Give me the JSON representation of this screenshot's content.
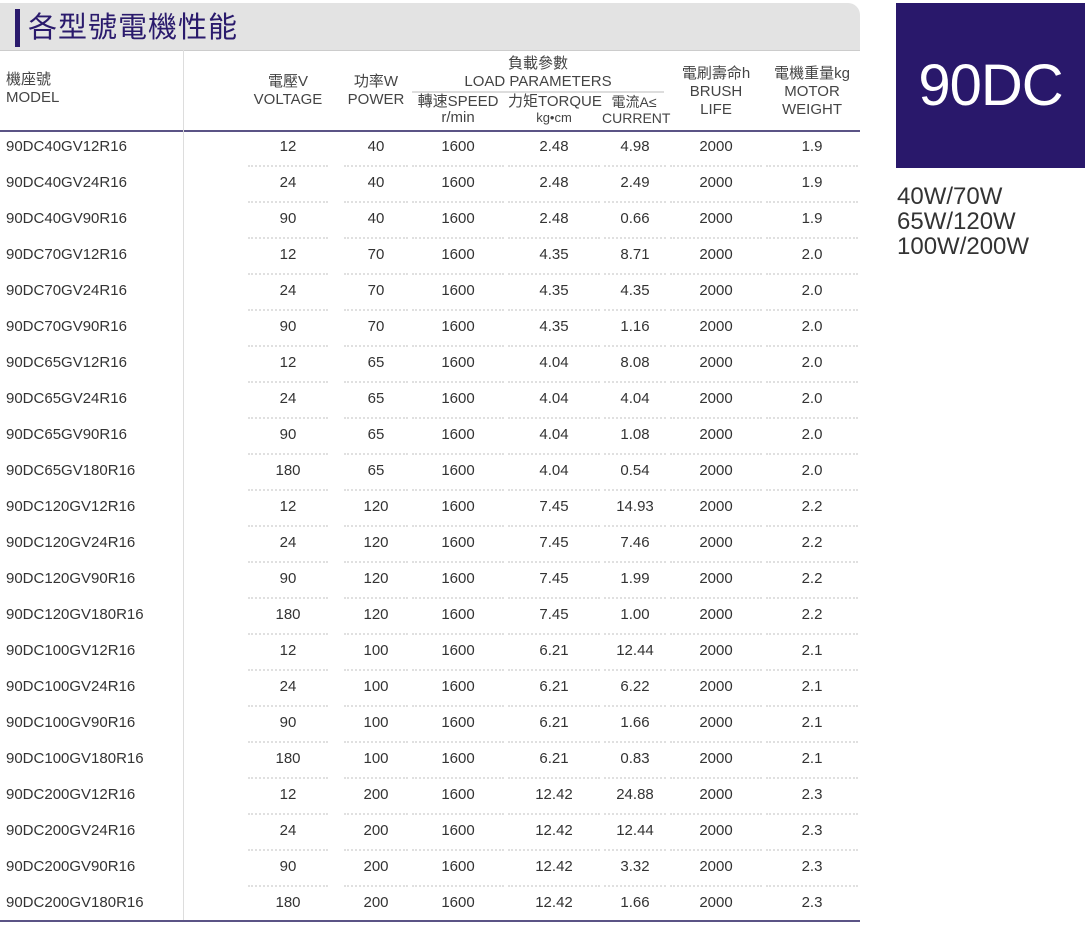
{
  "title": "各型號電機性能",
  "header": {
    "model_zh": "機座號",
    "model_en": "MODEL",
    "voltage_zh": "電壓V",
    "voltage_en": "VOLTAGE",
    "power_zh": "功率W",
    "power_en": "POWER",
    "load_zh": "負載參數",
    "load_en": "LOAD PARAMETERS",
    "speed": "轉速SPEED",
    "speed_unit": "r/min",
    "torque": "力矩TORQUE",
    "torque_unit": "kg•cm",
    "current": "電流A≤",
    "current_en": "CURRENT",
    "life_zh": "電刷壽命h",
    "life_en1": "BRUSH",
    "life_en2": "LIFE",
    "weight_zh": "電機重量kg",
    "weight_en1": "MOTOR",
    "weight_en2": "WEIGHT"
  },
  "rows": [
    [
      "90DC40GV12R16",
      "12",
      "40",
      "1600",
      "2.48",
      "4.98",
      "2000",
      "1.9"
    ],
    [
      "90DC40GV24R16",
      "24",
      "40",
      "1600",
      "2.48",
      "2.49",
      "2000",
      "1.9"
    ],
    [
      "90DC40GV90R16",
      "90",
      "40",
      "1600",
      "2.48",
      "0.66",
      "2000",
      "1.9"
    ],
    [
      "90DC70GV12R16",
      "12",
      "70",
      "1600",
      "4.35",
      "8.71",
      "2000",
      "2.0"
    ],
    [
      "90DC70GV24R16",
      "24",
      "70",
      "1600",
      "4.35",
      "4.35",
      "2000",
      "2.0"
    ],
    [
      "90DC70GV90R16",
      "90",
      "70",
      "1600",
      "4.35",
      "1.16",
      "2000",
      "2.0"
    ],
    [
      "90DC65GV12R16",
      "12",
      "65",
      "1600",
      "4.04",
      "8.08",
      "2000",
      "2.0"
    ],
    [
      "90DC65GV24R16",
      "24",
      "65",
      "1600",
      "4.04",
      "4.04",
      "2000",
      "2.0"
    ],
    [
      "90DC65GV90R16",
      "90",
      "65",
      "1600",
      "4.04",
      "1.08",
      "2000",
      "2.0"
    ],
    [
      "90DC65GV180R16",
      "180",
      "65",
      "1600",
      "4.04",
      "0.54",
      "2000",
      "2.0"
    ],
    [
      "90DC120GV12R16",
      "12",
      "120",
      "1600",
      "7.45",
      "14.93",
      "2000",
      "2.2"
    ],
    [
      "90DC120GV24R16",
      "24",
      "120",
      "1600",
      "7.45",
      "7.46",
      "2000",
      "2.2"
    ],
    [
      "90DC120GV90R16",
      "90",
      "120",
      "1600",
      "7.45",
      "1.99",
      "2000",
      "2.2"
    ],
    [
      "90DC120GV180R16",
      "180",
      "120",
      "1600",
      "7.45",
      "1.00",
      "2000",
      "2.2"
    ],
    [
      "90DC100GV12R16",
      "12",
      "100",
      "1600",
      "6.21",
      "12.44",
      "2000",
      "2.1"
    ],
    [
      "90DC100GV24R16",
      "24",
      "100",
      "1600",
      "6.21",
      "6.22",
      "2000",
      "2.1"
    ],
    [
      "90DC100GV90R16",
      "90",
      "100",
      "1600",
      "6.21",
      "1.66",
      "2000",
      "2.1"
    ],
    [
      "90DC100GV180R16",
      "180",
      "100",
      "1600",
      "6.21",
      "0.83",
      "2000",
      "2.1"
    ],
    [
      "90DC200GV12R16",
      "12",
      "200",
      "1600",
      "12.42",
      "24.88",
      "2000",
      "2.3"
    ],
    [
      "90DC200GV24R16",
      "24",
      "200",
      "1600",
      "12.42",
      "12.44",
      "2000",
      "2.3"
    ],
    [
      "90DC200GV90R16",
      "90",
      "200",
      "1600",
      "12.42",
      "3.32",
      "2000",
      "2.3"
    ],
    [
      "90DC200GV180R16",
      "180",
      "200",
      "1600",
      "12.42",
      "1.66",
      "2000",
      "2.3"
    ]
  ],
  "badge": "90DC",
  "power_variants": [
    "40W/70W",
    "65W/120W",
    "100W/200W"
  ],
  "colors": {
    "accent": "#29186b",
    "title_bg": "#e3e3e3"
  }
}
